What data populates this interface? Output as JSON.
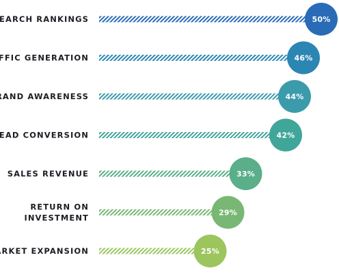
{
  "chart_data": {
    "type": "bar",
    "orientation": "horizontal",
    "title": "",
    "xlabel": "",
    "ylabel": "",
    "categories": [
      [
        "SEARCH RANKINGS"
      ],
      [
        "TRAFFIC GENERATION"
      ],
      [
        "BRAND AWARENESS"
      ],
      [
        "LEAD CONVERSION"
      ],
      [
        "SALES REVENUE"
      ],
      [
        "RETURN ON",
        "INVESTMENT"
      ],
      [
        "MARKET EXPANSION"
      ]
    ],
    "values": [
      50,
      46,
      44,
      42,
      33,
      29,
      25
    ],
    "value_labels": [
      "50%",
      "46%",
      "44%",
      "42%",
      "33%",
      "29%",
      "25%"
    ],
    "xlim": [
      0,
      50
    ],
    "colors": [
      "#2a6bb7",
      "#2c86b3",
      "#3b9bab",
      "#40a69a",
      "#5aae8a",
      "#78b874",
      "#9cc55e"
    ],
    "grid": false,
    "legend": "none",
    "bar_style": "diagonal-hatch-with-end-circle"
  }
}
